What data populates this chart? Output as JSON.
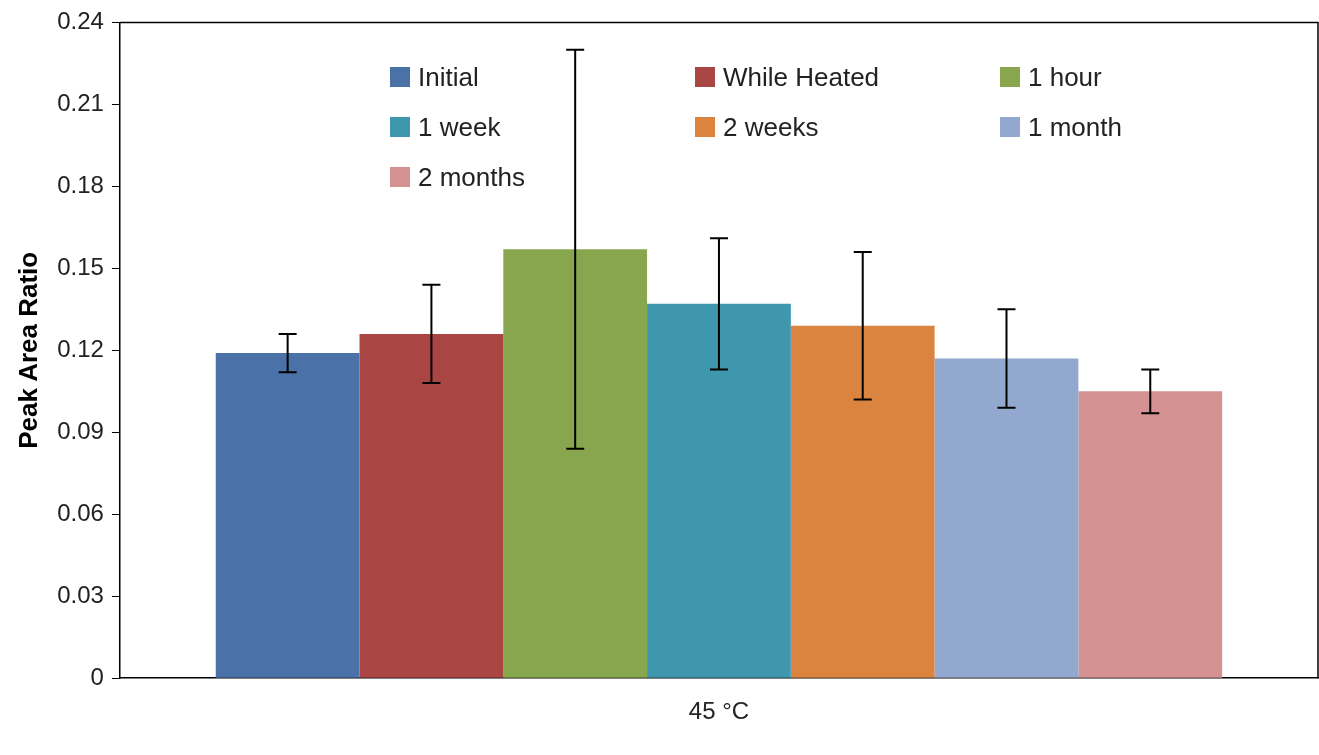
{
  "chart_data": {
    "type": "bar",
    "ylabel": "Peak Area Ratio",
    "categories": [
      "45 °C"
    ],
    "series": [
      {
        "name": "Initial",
        "color": "#4a72a8",
        "values": [
          0.119
        ],
        "errors": [
          0.007
        ]
      },
      {
        "name": "While Heated",
        "color": "#a94543",
        "values": [
          0.126
        ],
        "errors": [
          0.018
        ]
      },
      {
        "name": "1 hour",
        "color": "#88a64d",
        "values": [
          0.157
        ],
        "errors": [
          0.073
        ]
      },
      {
        "name": "1 week",
        "color": "#3f97ae",
        "values": [
          0.137
        ],
        "errors": [
          0.024
        ]
      },
      {
        "name": "2 weeks",
        "color": "#db8440",
        "values": [
          0.129
        ],
        "errors": [
          0.027
        ]
      },
      {
        "name": "1 month",
        "color": "#93a8cf",
        "values": [
          0.117
        ],
        "errors": [
          0.018
        ]
      },
      {
        "name": "2 months",
        "color": "#d49392",
        "values": [
          0.105
        ],
        "errors": [
          0.008
        ]
      }
    ],
    "ylim": [
      0,
      0.24
    ],
    "yticks": [
      0,
      0.03,
      0.06,
      0.09,
      0.12,
      0.15,
      0.18,
      0.21,
      0.24
    ],
    "grid": false,
    "legend": "top"
  }
}
